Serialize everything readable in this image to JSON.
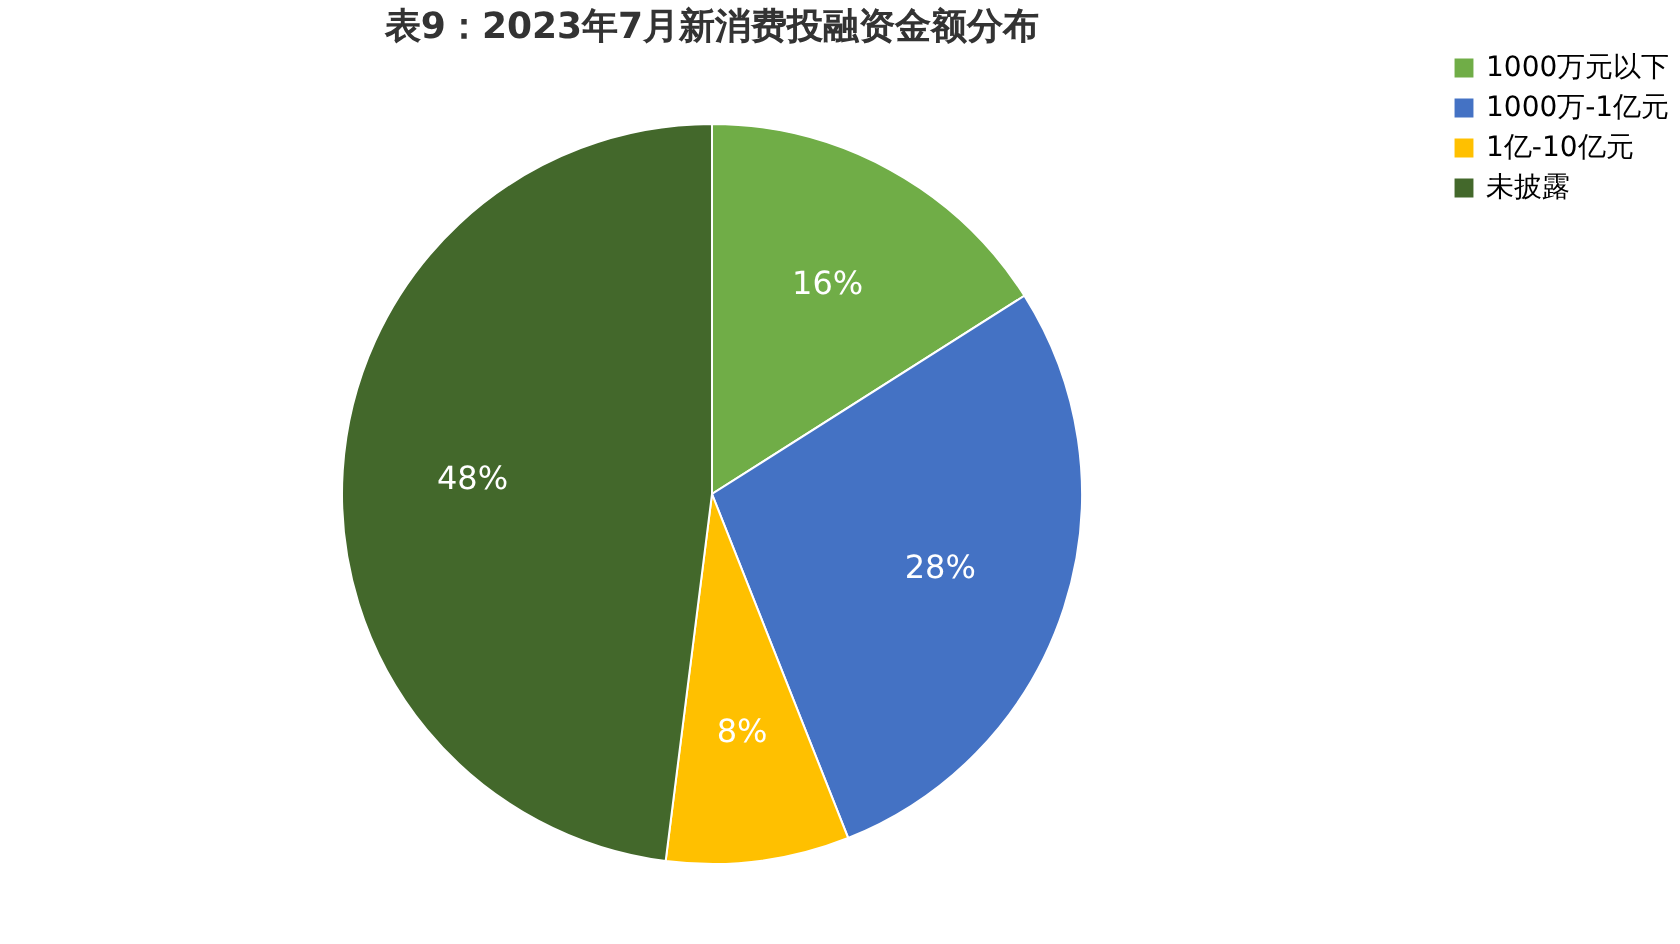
{
  "chart_data": {
    "type": "pie",
    "title": "表9：2023年7月新消费投融资金额分布",
    "categories": [
      "1000万元以下",
      "1000万-1亿元",
      "1亿-10亿元",
      "未披露"
    ],
    "values": [
      16,
      28,
      8,
      48
    ],
    "value_labels": [
      "16%",
      "28%",
      "8%",
      "48%"
    ],
    "colors": [
      "#70ad47",
      "#4472c4",
      "#ffc000",
      "#43682b"
    ],
    "legend": "right"
  }
}
